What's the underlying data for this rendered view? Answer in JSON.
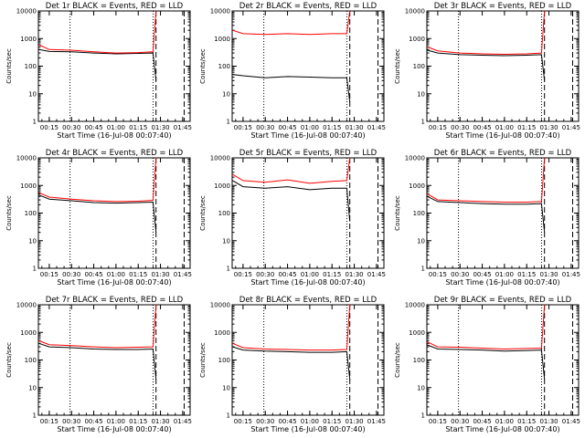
{
  "figure": {
    "xlabel": "Start Time (16-Jul-08 00:07:40)",
    "ylabel": "Counts/sec"
  },
  "chart_data": [
    {
      "type": "line",
      "title": "Det 1r BLACK = Events, RED = LLD",
      "x_tick_labels": [
        "00:15",
        "00:30",
        "00:45",
        "01:00",
        "01:15",
        "01:30",
        "01:45"
      ],
      "y_tick_labels": [
        "1",
        "10",
        "100",
        "1000",
        "10000"
      ],
      "xlabel": "Start Time (16-Jul-08 00:07:40)",
      "ylabel": "Counts/sec",
      "yscale": "log",
      "ylim": [
        1,
        10000
      ],
      "xlim": [
        "00:07:40",
        "01:50:00"
      ],
      "x": [
        "00:08",
        "00:15",
        "00:30",
        "00:45",
        "01:00",
        "01:15",
        "01:25",
        "01:27"
      ],
      "series": [
        {
          "color": "#000000",
          "values": [
            400,
            340,
            330,
            300,
            280,
            290,
            300,
            30
          ]
        },
        {
          "color": "#ff0000",
          "values": [
            600,
            400,
            380,
            330,
            300,
            310,
            330,
            10000
          ]
        }
      ],
      "vlines_dotted": [
        "00:29",
        "01:25"
      ],
      "vlines_dashed": [
        "01:27",
        "01:46"
      ]
    },
    {
      "type": "line",
      "title": "Det 2r BLACK = Events, RED = LLD",
      "x_tick_labels": [
        "00:15",
        "00:30",
        "00:45",
        "01:00",
        "01:15",
        "01:30",
        "01:45"
      ],
      "y_tick_labels": [
        "1",
        "10",
        "100",
        "1000",
        "10000"
      ],
      "xlabel": "Start Time (16-Jul-08 00:07:40)",
      "ylabel": "Counts/sec",
      "yscale": "log",
      "ylim": [
        1,
        10000
      ],
      "xlim": [
        "00:07:40",
        "01:50:00"
      ],
      "x": [
        "00:08",
        "00:15",
        "00:30",
        "00:45",
        "01:00",
        "01:15",
        "01:25",
        "01:27"
      ],
      "series": [
        {
          "color": "#000000",
          "values": [
            50,
            45,
            38,
            42,
            40,
            38,
            38,
            5
          ]
        },
        {
          "color": "#ff0000",
          "values": [
            2000,
            1500,
            1400,
            1500,
            1400,
            1500,
            1500,
            10000
          ]
        }
      ],
      "vlines_dotted": [
        "00:29",
        "01:25"
      ],
      "vlines_dashed": [
        "01:27",
        "01:46"
      ]
    },
    {
      "type": "line",
      "title": "Det 3r BLACK = Events, RED = LLD",
      "x_tick_labels": [
        "00:15",
        "00:30",
        "00:45",
        "01:00",
        "01:15",
        "01:30",
        "01:45"
      ],
      "y_tick_labels": [
        "1",
        "10",
        "100",
        "1000",
        "10000"
      ],
      "xlabel": "Start Time (16-Jul-08 00:07:40)",
      "ylabel": "Counts/sec",
      "yscale": "log",
      "ylim": [
        1,
        10000
      ],
      "xlim": [
        "00:07:40",
        "01:50:00"
      ],
      "x": [
        "00:08",
        "00:15",
        "00:30",
        "00:45",
        "01:00",
        "01:15",
        "01:25",
        "01:27"
      ],
      "series": [
        {
          "color": "#000000",
          "values": [
            380,
            300,
            260,
            250,
            240,
            250,
            260,
            30
          ]
        },
        {
          "color": "#ff0000",
          "values": [
            500,
            360,
            300,
            280,
            270,
            280,
            300,
            10000
          ]
        }
      ],
      "vlines_dotted": [
        "00:29",
        "01:25"
      ],
      "vlines_dashed": [
        "01:27",
        "01:46"
      ]
    },
    {
      "type": "line",
      "title": "Det 4r BLACK = Events, RED = LLD",
      "x_tick_labels": [
        "00:15",
        "00:30",
        "00:45",
        "01:00",
        "01:15",
        "01:30",
        "01:45"
      ],
      "y_tick_labels": [
        "1",
        "10",
        "100",
        "1000",
        "10000"
      ],
      "xlabel": "Start Time (16-Jul-08 00:07:40)",
      "ylabel": "Counts/sec",
      "yscale": "log",
      "ylim": [
        1,
        10000
      ],
      "xlim": [
        "00:07:40",
        "01:50:00"
      ],
      "x": [
        "00:08",
        "00:15",
        "00:30",
        "00:45",
        "01:00",
        "01:15",
        "01:25",
        "01:27"
      ],
      "series": [
        {
          "color": "#000000",
          "values": [
            450,
            320,
            280,
            240,
            230,
            240,
            250,
            20
          ]
        },
        {
          "color": "#ff0000",
          "values": [
            550,
            380,
            320,
            280,
            260,
            270,
            290,
            10000
          ]
        }
      ],
      "vlines_dotted": [
        "00:29",
        "01:25"
      ],
      "vlines_dashed": [
        "01:27",
        "01:46"
      ]
    },
    {
      "type": "line",
      "title": "Det 5r BLACK = Events, RED = LLD",
      "x_tick_labels": [
        "00:15",
        "00:30",
        "00:45",
        "01:00",
        "01:15",
        "01:30",
        "01:45"
      ],
      "y_tick_labels": [
        "1",
        "10",
        "100",
        "1000",
        "10000"
      ],
      "xlabel": "Start Time (16-Jul-08 00:07:40)",
      "ylabel": "Counts/sec",
      "yscale": "log",
      "ylim": [
        1,
        10000
      ],
      "xlim": [
        "00:07:40",
        "01:50:00"
      ],
      "x": [
        "00:08",
        "00:15",
        "00:30",
        "00:45",
        "01:00",
        "01:15",
        "01:25",
        "01:27"
      ],
      "series": [
        {
          "color": "#000000",
          "values": [
            1500,
            900,
            800,
            900,
            700,
            800,
            800,
            50
          ]
        },
        {
          "color": "#ff0000",
          "values": [
            2500,
            1500,
            1300,
            1600,
            1200,
            1400,
            1500,
            10000
          ]
        }
      ],
      "vlines_dotted": [
        "00:29",
        "01:25"
      ],
      "vlines_dashed": [
        "01:27",
        "01:46"
      ]
    },
    {
      "type": "line",
      "title": "Det 6r BLACK = Events, RED = LLD",
      "x_tick_labels": [
        "00:15",
        "00:30",
        "00:45",
        "01:00",
        "01:15",
        "01:30",
        "01:45"
      ],
      "y_tick_labels": [
        "1",
        "10",
        "100",
        "1000",
        "10000"
      ],
      "xlabel": "Start Time (16-Jul-08 00:07:40)",
      "ylabel": "Counts/sec",
      "yscale": "log",
      "ylim": [
        1,
        10000
      ],
      "xlim": [
        "00:07:40",
        "01:50:00"
      ],
      "x": [
        "00:08",
        "00:15",
        "00:30",
        "00:45",
        "01:00",
        "01:15",
        "01:25",
        "01:27"
      ],
      "series": [
        {
          "color": "#000000",
          "values": [
            400,
            260,
            240,
            220,
            210,
            210,
            220,
            20
          ]
        },
        {
          "color": "#ff0000",
          "values": [
            500,
            300,
            280,
            260,
            250,
            250,
            260,
            10000
          ]
        }
      ],
      "vlines_dotted": [
        "00:29",
        "01:25"
      ],
      "vlines_dashed": [
        "01:27",
        "01:46"
      ]
    },
    {
      "type": "line",
      "title": "Det 7r BLACK = Events, RED = LLD",
      "x_tick_labels": [
        "00:15",
        "00:30",
        "00:45",
        "01:00",
        "01:15",
        "01:30",
        "01:45"
      ],
      "y_tick_labels": [
        "1",
        "10",
        "100",
        "1000",
        "10000"
      ],
      "xlabel": "Start Time (16-Jul-08 00:07:40)",
      "ylabel": "Counts/sec",
      "yscale": "log",
      "ylim": [
        1,
        10000
      ],
      "xlim": [
        "00:07:40",
        "01:50:00"
      ],
      "x": [
        "00:08",
        "00:15",
        "00:30",
        "00:45",
        "01:00",
        "01:15",
        "01:25",
        "01:27"
      ],
      "series": [
        {
          "color": "#000000",
          "values": [
            400,
            300,
            280,
            250,
            240,
            240,
            250,
            20
          ]
        },
        {
          "color": "#ff0000",
          "values": [
            500,
            360,
            330,
            300,
            280,
            290,
            300,
            10000
          ]
        }
      ],
      "vlines_dotted": [
        "00:29",
        "01:25"
      ],
      "vlines_dashed": [
        "01:27",
        "01:46"
      ]
    },
    {
      "type": "line",
      "title": "Det 8r BLACK = Events, RED = LLD",
      "x_tick_labels": [
        "00:15",
        "00:30",
        "00:45",
        "01:00",
        "01:15",
        "01:30",
        "01:45"
      ],
      "y_tick_labels": [
        "1",
        "10",
        "100",
        "1000",
        "10000"
      ],
      "xlabel": "Start Time (16-Jul-08 00:07:40)",
      "ylabel": "Counts/sec",
      "yscale": "log",
      "ylim": [
        1,
        10000
      ],
      "xlim": [
        "00:07:40",
        "01:50:00"
      ],
      "x": [
        "00:08",
        "00:15",
        "00:30",
        "00:45",
        "01:00",
        "01:15",
        "01:25",
        "01:27"
      ],
      "series": [
        {
          "color": "#000000",
          "values": [
            300,
            230,
            210,
            200,
            190,
            190,
            200,
            20
          ]
        },
        {
          "color": "#ff0000",
          "values": [
            400,
            280,
            250,
            240,
            230,
            230,
            240,
            10000
          ]
        }
      ],
      "vlines_dotted": [
        "00:29",
        "01:25"
      ],
      "vlines_dashed": [
        "01:27",
        "01:46"
      ]
    },
    {
      "type": "line",
      "title": "Det 9r BLACK = Events, RED = LLD",
      "x_tick_labels": [
        "00:15",
        "00:30",
        "00:45",
        "01:00",
        "01:15",
        "01:30",
        "01:45"
      ],
      "y_tick_labels": [
        "1",
        "10",
        "100",
        "1000",
        "10000"
      ],
      "xlabel": "Start Time (16-Jul-08 00:07:40)",
      "ylabel": "Counts/sec",
      "yscale": "log",
      "ylim": [
        1,
        10000
      ],
      "xlim": [
        "00:07:40",
        "01:50:00"
      ],
      "x": [
        "00:08",
        "00:15",
        "00:30",
        "00:45",
        "01:00",
        "01:15",
        "01:25",
        "01:27"
      ],
      "series": [
        {
          "color": "#000000",
          "values": [
            350,
            250,
            240,
            230,
            210,
            220,
            230,
            20
          ]
        },
        {
          "color": "#ff0000",
          "values": [
            450,
            300,
            290,
            270,
            250,
            260,
            270,
            10000
          ]
        }
      ],
      "vlines_dotted": [
        "00:29",
        "01:25"
      ],
      "vlines_dashed": [
        "01:27",
        "01:46"
      ]
    }
  ]
}
